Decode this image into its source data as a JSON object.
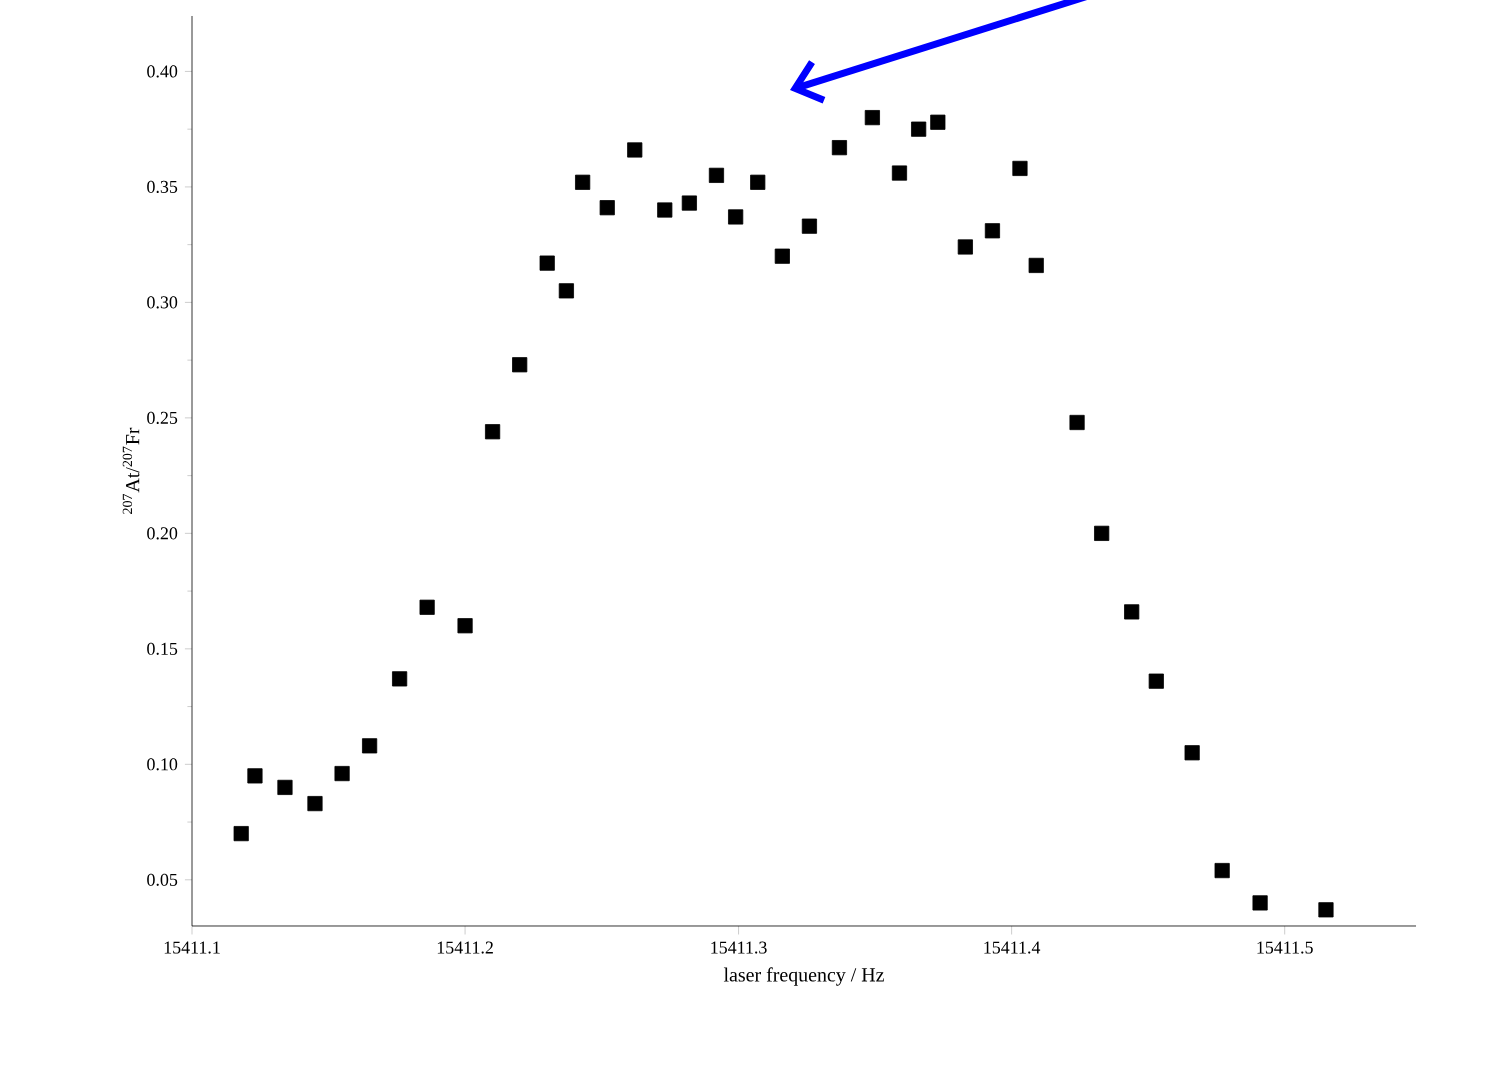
{
  "chart_data": {
    "type": "scatter",
    "xlabel": "laser frequency / Hz",
    "ylabel": "$^{207}$At/$^{207}$Fr",
    "marker": "square",
    "grid": false,
    "xlim": [
      15411.1,
      15411.548
    ],
    "ylim": [
      0.03,
      0.424
    ],
    "xticks": [
      15411.1,
      15411.2,
      15411.3,
      15411.4,
      15411.5
    ],
    "yticks": [
      0.05,
      {
        "value": 0.1,
        "label": "0.10"
      },
      {
        "value": 0.15,
        "label": "0.15"
      },
      {
        "value": 0.2,
        "label": "0.20"
      },
      0.25,
      {
        "value": 0.3,
        "label": "0.30"
      },
      0.35,
      {
        "value": 0.4,
        "label": "0.40"
      }
    ],
    "series": [
      {
        "color": "#000000",
        "x": [
          15411.118,
          15411.123,
          15411.134,
          15411.145,
          15411.155,
          15411.165,
          15411.176,
          15411.186,
          15411.2,
          15411.21,
          15411.22,
          15411.23,
          15411.237,
          15411.243,
          15411.252,
          15411.262,
          15411.273,
          15411.282,
          15411.292,
          15411.299,
          15411.307,
          15411.316,
          15411.326,
          15411.337,
          15411.349,
          15411.359,
          15411.366,
          15411.373,
          15411.383,
          15411.393,
          15411.403,
          15411.409,
          15411.424,
          15411.433,
          15411.444,
          15411.453,
          15411.466,
          15411.477,
          15411.491,
          15411.515
        ],
        "values": [
          0.07,
          0.095,
          0.09,
          0.083,
          0.096,
          0.108,
          0.137,
          0.168,
          0.16,
          0.244,
          0.273,
          0.317,
          0.305,
          0.352,
          0.341,
          0.366,
          0.34,
          0.343,
          0.355,
          0.337,
          0.352,
          0.32,
          0.333,
          0.367,
          0.38,
          0.356,
          0.375,
          0.378,
          0.324,
          0.331,
          0.358,
          0.316,
          0.248,
          0.2,
          0.166,
          0.136,
          0.105,
          0.054,
          0.04,
          0.037
        ]
      }
    ]
  }
}
